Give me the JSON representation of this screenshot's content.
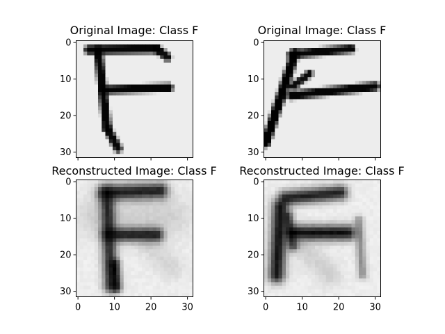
{
  "figure": {
    "background": "#ffffff"
  },
  "chart_data": [
    {
      "type": "heatmap",
      "title": "Original Image: Class F",
      "colormap": "gray_r",
      "image_size": [
        32,
        32
      ],
      "xticks": [],
      "yticks": [
        "0",
        "10",
        "20",
        "30"
      ],
      "background_level": 0.07,
      "glyph": {
        "strokes": [
          {
            "x1": 3.5,
            "y1": 2.5,
            "x2": 22.0,
            "y2": 2.2,
            "w": 1.6,
            "v": 0.98
          },
          {
            "x1": 22.0,
            "y1": 2.2,
            "x2": 25.0,
            "y2": 4.5,
            "w": 1.4,
            "v": 0.95
          },
          {
            "x1": 6.0,
            "y1": 2.5,
            "x2": 8.5,
            "y2": 24.0,
            "w": 1.5,
            "v": 0.98
          },
          {
            "x1": 8.5,
            "y1": 24.0,
            "x2": 11.5,
            "y2": 29.5,
            "w": 1.4,
            "v": 0.96
          },
          {
            "x1": 7.5,
            "y1": 13.5,
            "x2": 25.5,
            "y2": 12.8,
            "w": 1.4,
            "v": 0.98
          }
        ]
      }
    },
    {
      "type": "heatmap",
      "title": "Original Image: Class F",
      "colormap": "gray_r",
      "image_size": [
        32,
        32
      ],
      "xticks": [],
      "yticks": [
        "0",
        "10",
        "20",
        "30"
      ],
      "background_level": 0.07,
      "glyph": {
        "strokes": [
          {
            "x1": 0.5,
            "y1": 28.0,
            "x2": 8.5,
            "y2": 3.5,
            "w": 1.7,
            "v": 0.99
          },
          {
            "x1": 7.5,
            "y1": 3.8,
            "x2": 24.0,
            "y2": 2.2,
            "w": 1.4,
            "v": 0.97
          },
          {
            "x1": 8.0,
            "y1": 12.5,
            "x2": 12.5,
            "y2": 9.0,
            "w": 1.1,
            "v": 0.95
          },
          {
            "x1": 7.5,
            "y1": 15.0,
            "x2": 30.5,
            "y2": 12.5,
            "w": 1.5,
            "v": 0.98
          }
        ]
      }
    },
    {
      "type": "heatmap",
      "title": "Reconstructed Image: Class F",
      "colormap": "gray_r",
      "image_size": [
        32,
        32
      ],
      "xticks": [
        "0",
        "10",
        "20",
        "30"
      ],
      "yticks": [
        "0",
        "10",
        "20",
        "30"
      ],
      "background_level": 0.05,
      "glyph": {
        "strokes": [
          {
            "x1": 8.0,
            "y1": 3.5,
            "x2": 23.0,
            "y2": 3.0,
            "w": 2.0,
            "v": 0.85
          },
          {
            "x1": 8.5,
            "y1": 4.0,
            "x2": 9.5,
            "y2": 29.0,
            "w": 1.8,
            "v": 0.8
          },
          {
            "x1": 9.0,
            "y1": 15.0,
            "x2": 22.0,
            "y2": 15.0,
            "w": 1.8,
            "v": 0.85
          },
          {
            "x1": 10.5,
            "y1": 23.0,
            "x2": 11.0,
            "y2": 29.5,
            "w": 1.2,
            "v": 0.9
          },
          {
            "x1": 5.0,
            "y1": 10.0,
            "x2": 26.0,
            "y2": 10.0,
            "w": 5.0,
            "v": 0.12
          },
          {
            "x1": 20.0,
            "y1": 18.0,
            "x2": 26.0,
            "y2": 24.0,
            "w": 3.0,
            "v": 0.1
          }
        ]
      }
    },
    {
      "type": "heatmap",
      "title": "Reconstructed Image: Class F",
      "colormap": "gray_r",
      "image_size": [
        32,
        32
      ],
      "xticks": [
        "0",
        "10",
        "20",
        "30"
      ],
      "yticks": [
        "0",
        "10",
        "20",
        "30"
      ],
      "background_level": 0.05,
      "glyph": {
        "strokes": [
          {
            "x1": 4.5,
            "y1": 7.5,
            "x2": 3.5,
            "y2": 26.0,
            "w": 2.0,
            "v": 0.9
          },
          {
            "x1": 6.0,
            "y1": 5.0,
            "x2": 21.0,
            "y2": 3.5,
            "w": 1.8,
            "v": 0.85
          },
          {
            "x1": 8.0,
            "y1": 14.5,
            "x2": 23.0,
            "y2": 14.5,
            "w": 1.9,
            "v": 0.92
          },
          {
            "x1": 6.5,
            "y1": 10.0,
            "x2": 8.0,
            "y2": 18.0,
            "w": 1.3,
            "v": 0.7
          },
          {
            "x1": 26.0,
            "y1": 11.0,
            "x2": 27.0,
            "y2": 26.0,
            "w": 1.1,
            "v": 0.4
          },
          {
            "x1": 10.0,
            "y1": 18.0,
            "x2": 18.0,
            "y2": 26.0,
            "w": 3.0,
            "v": 0.12
          }
        ]
      }
    }
  ]
}
